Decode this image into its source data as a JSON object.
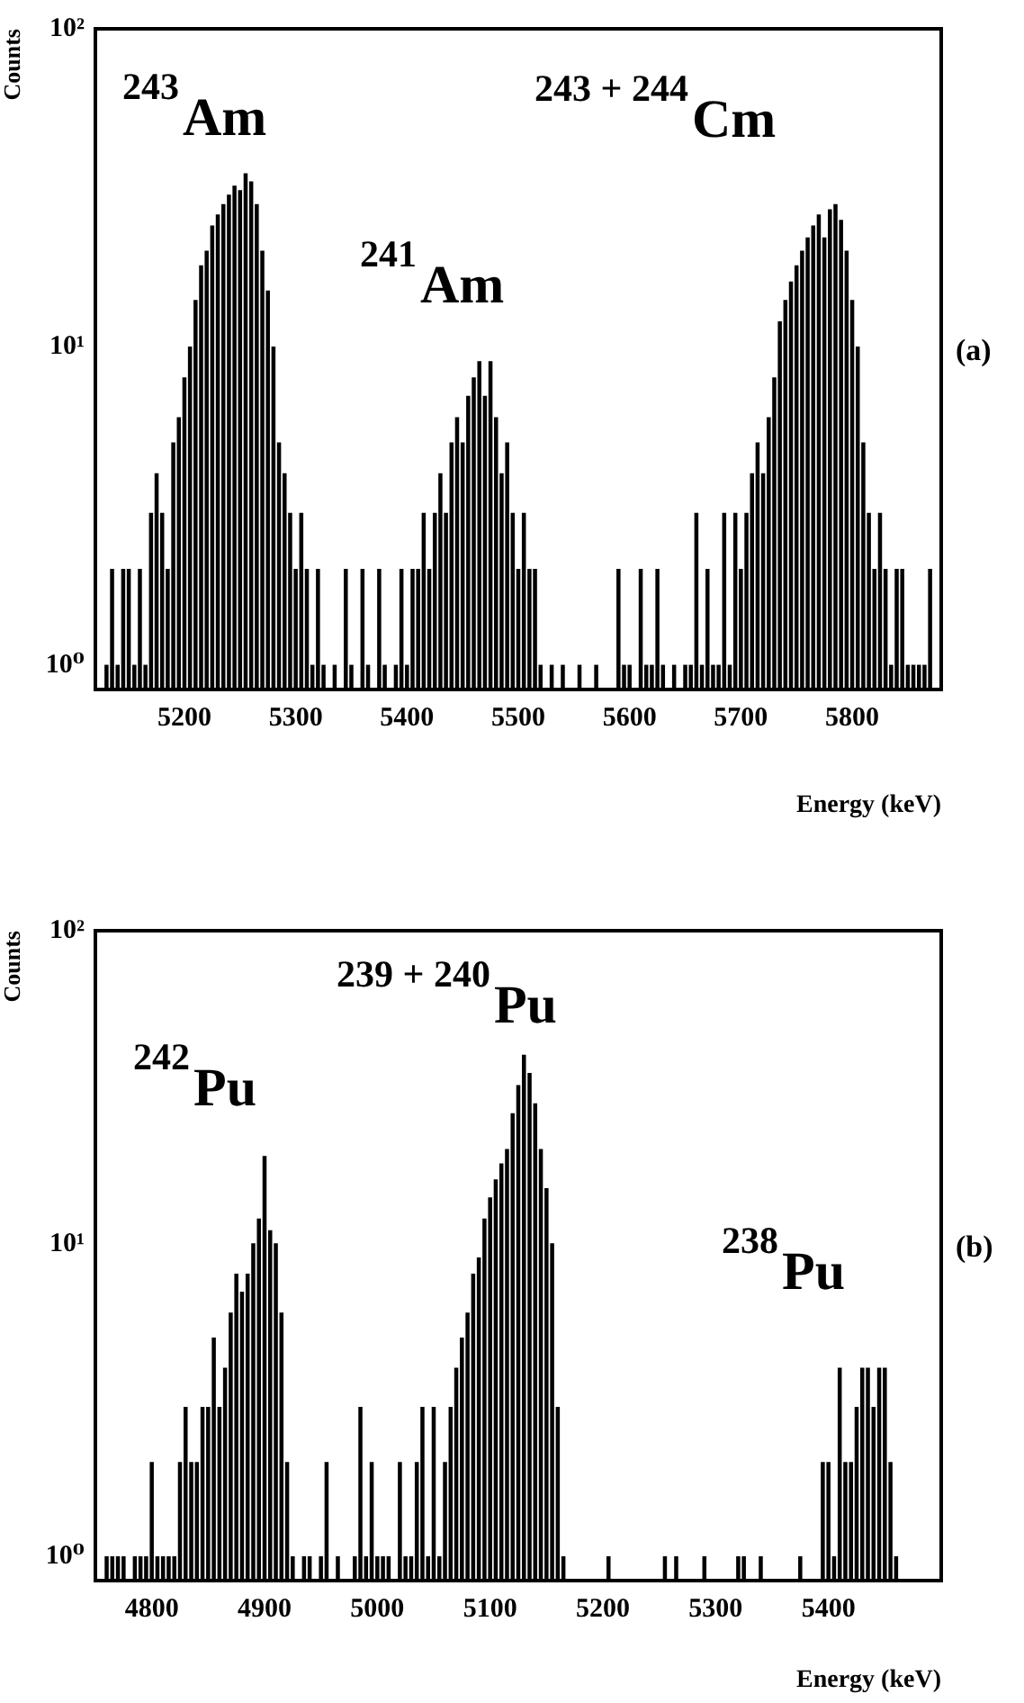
{
  "chart_data": [
    {
      "type": "bar",
      "xlabel": "Energy (keV)",
      "ylabel": "Counts",
      "log": true,
      "grid": false,
      "legend": false,
      "xlim": [
        5120,
        5880
      ],
      "xticks": [
        5200,
        5300,
        5400,
        5500,
        5600,
        5700,
        5800
      ],
      "ylim": [
        0.84,
        100
      ],
      "yticks": [
        {
          "value": 1,
          "label": "10⁰"
        },
        {
          "value": 10,
          "label": "10¹"
        },
        {
          "value": 100,
          "label": "10²"
        }
      ],
      "annotations": [
        "$^{243}$Am",
        "$^{241}$Am",
        "$^{243 + 244}$Cm",
        "(a)"
      ],
      "series": [
        {
          "color": "#000000",
          "x": [
            5130,
            5135,
            5140,
            5145,
            5150,
            5155,
            5160,
            5165,
            5170,
            5175,
            5180,
            5185,
            5190,
            5195,
            5200,
            5205,
            5210,
            5215,
            5220,
            5225,
            5230,
            5235,
            5240,
            5245,
            5250,
            5255,
            5260,
            5265,
            5270,
            5275,
            5280,
            5285,
            5290,
            5295,
            5300,
            5305,
            5310,
            5315,
            5320,
            5325,
            5335,
            5345,
            5350,
            5360,
            5365,
            5375,
            5380,
            5390,
            5395,
            5400,
            5405,
            5410,
            5415,
            5420,
            5425,
            5430,
            5435,
            5440,
            5445,
            5450,
            5455,
            5460,
            5465,
            5470,
            5475,
            5480,
            5485,
            5490,
            5495,
            5500,
            5505,
            5510,
            5515,
            5520,
            5530,
            5540,
            5555,
            5570,
            5590,
            5595,
            5600,
            5610,
            5615,
            5620,
            5625,
            5630,
            5640,
            5650,
            5655,
            5660,
            5665,
            5670,
            5675,
            5680,
            5685,
            5690,
            5695,
            5700,
            5705,
            5710,
            5715,
            5720,
            5725,
            5730,
            5735,
            5740,
            5745,
            5750,
            5755,
            5760,
            5765,
            5770,
            5775,
            5780,
            5785,
            5790,
            5795,
            5800,
            5805,
            5810,
            5815,
            5820,
            5825,
            5830,
            5835,
            5840,
            5845,
            5850,
            5855,
            5860,
            5865,
            5870
          ],
          "values": [
            1,
            2,
            1,
            2,
            2,
            1,
            2,
            1,
            3,
            4,
            3,
            2,
            5,
            6,
            8,
            10,
            14,
            18,
            20,
            24,
            26,
            28,
            30,
            32,
            31,
            35,
            33,
            28,
            20,
            15,
            10,
            5,
            4,
            3,
            2,
            3,
            2,
            1,
            2,
            1,
            1,
            2,
            1,
            2,
            1,
            2,
            1,
            1,
            2,
            1,
            2,
            2,
            3,
            2,
            3,
            4,
            3,
            5,
            6,
            5,
            7,
            8,
            9,
            7,
            9,
            6,
            4,
            5,
            3,
            2,
            3,
            2,
            2,
            1,
            1,
            1,
            1,
            1,
            2,
            1,
            1,
            2,
            1,
            1,
            2,
            1,
            1,
            1,
            1,
            3,
            1,
            2,
            1,
            1,
            3,
            1,
            3,
            2,
            3,
            4,
            5,
            4,
            6,
            8,
            12,
            14,
            16,
            18,
            20,
            22,
            24,
            26,
            22,
            27,
            28,
            25,
            20,
            14,
            10,
            5,
            3,
            2,
            3,
            2,
            1,
            2,
            2,
            1,
            1,
            1,
            1,
            2
          ]
        }
      ]
    },
    {
      "type": "bar",
      "xlabel": "Energy (keV)",
      "ylabel": "Counts",
      "log": true,
      "grid": false,
      "legend": false,
      "xlim": [
        4750,
        5500
      ],
      "xticks": [
        4800,
        4900,
        5000,
        5100,
        5200,
        5300,
        5400
      ],
      "ylim": [
        0.84,
        100
      ],
      "yticks": [
        {
          "value": 1,
          "label": "10⁰"
        },
        {
          "value": 10,
          "label": "10¹"
        },
        {
          "value": 100,
          "label": "10²"
        }
      ],
      "annotations": [
        "$^{242}$Pu",
        "$^{239 + 240}$Pu",
        "$^{238}$Pu",
        "(b)"
      ],
      "series": [
        {
          "color": "#000000",
          "x": [
            4760,
            4765,
            4770,
            4775,
            4785,
            4790,
            4795,
            4800,
            4805,
            4810,
            4815,
            4820,
            4825,
            4830,
            4835,
            4840,
            4845,
            4850,
            4855,
            4860,
            4865,
            4870,
            4875,
            4880,
            4885,
            4890,
            4895,
            4900,
            4905,
            4910,
            4915,
            4920,
            4925,
            4935,
            4940,
            4950,
            4955,
            4965,
            4980,
            4985,
            4990,
            4995,
            5000,
            5005,
            5010,
            5020,
            5025,
            5030,
            5035,
            5040,
            5045,
            5050,
            5055,
            5060,
            5065,
            5070,
            5075,
            5080,
            5085,
            5090,
            5095,
            5100,
            5105,
            5110,
            5115,
            5120,
            5125,
            5130,
            5135,
            5140,
            5145,
            5150,
            5155,
            5160,
            5165,
            5205,
            5255,
            5265,
            5290,
            5320,
            5325,
            5340,
            5375,
            5395,
            5400,
            5405,
            5410,
            5415,
            5420,
            5425,
            5430,
            5435,
            5440,
            5445,
            5450,
            5455,
            5460
          ],
          "values": [
            1,
            1,
            1,
            1,
            1,
            1,
            1,
            2,
            1,
            1,
            1,
            1,
            2,
            3,
            2,
            2,
            3,
            3,
            5,
            3,
            4,
            6,
            8,
            7,
            8,
            10,
            12,
            19,
            11,
            10,
            6,
            2,
            1,
            1,
            1,
            1,
            2,
            1,
            1,
            3,
            1,
            2,
            1,
            1,
            1,
            2,
            1,
            1,
            2,
            3,
            1,
            3,
            1,
            2,
            3,
            4,
            5,
            6,
            8,
            9,
            12,
            14,
            16,
            18,
            20,
            26,
            32,
            40,
            35,
            28,
            20,
            15,
            10,
            3,
            1,
            1,
            1,
            1,
            1,
            1,
            1,
            1,
            1,
            2,
            2,
            1,
            4,
            2,
            2,
            3,
            4,
            4,
            3,
            4,
            4,
            2,
            1
          ]
        }
      ]
    }
  ]
}
